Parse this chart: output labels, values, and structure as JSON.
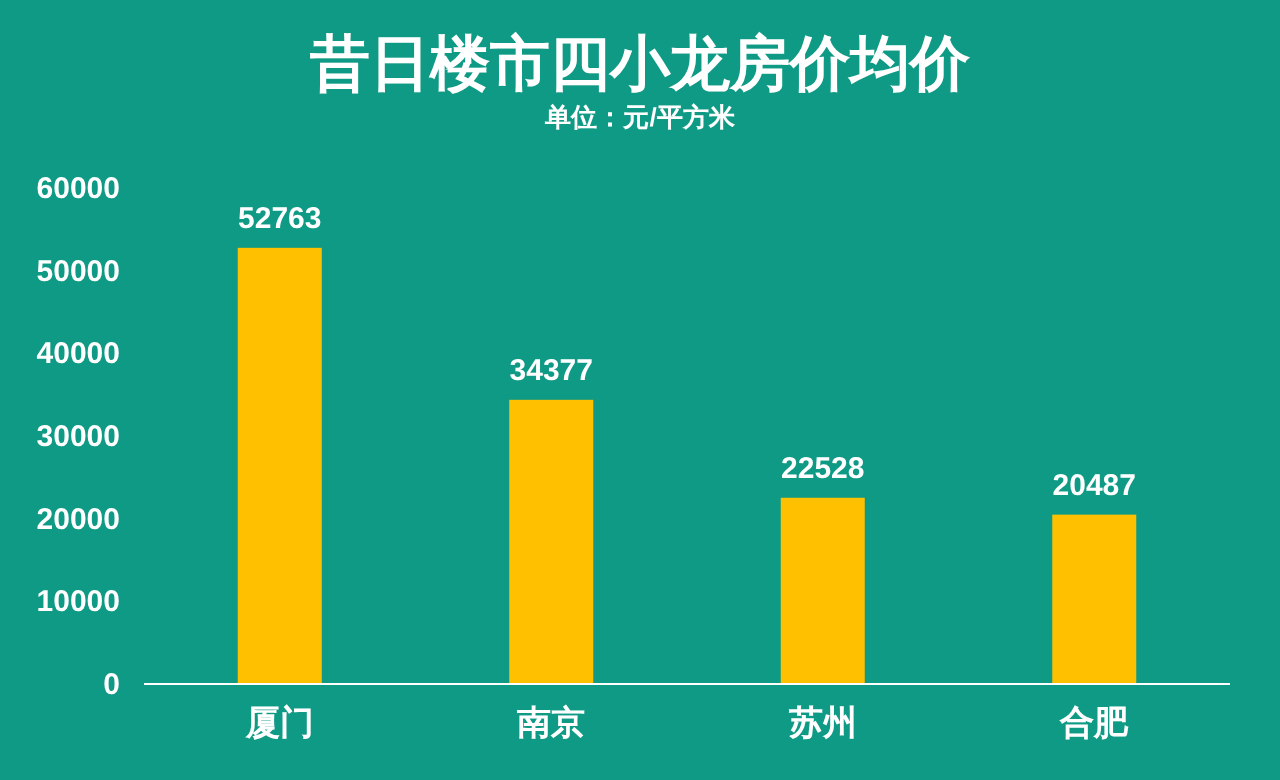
{
  "chart_data": {
    "type": "bar",
    "title": "昔日楼市四小龙房价均价",
    "subtitle": "单位：元/平方米",
    "categories": [
      "厦门",
      "南京",
      "苏州",
      "合肥"
    ],
    "values": [
      52763,
      34377,
      22528,
      20487
    ],
    "color": "#ffc000",
    "ylim": [
      0,
      60000
    ],
    "yticks": [
      0,
      10000,
      20000,
      30000,
      40000,
      50000,
      60000
    ],
    "data_labels": true,
    "grid": false
  }
}
